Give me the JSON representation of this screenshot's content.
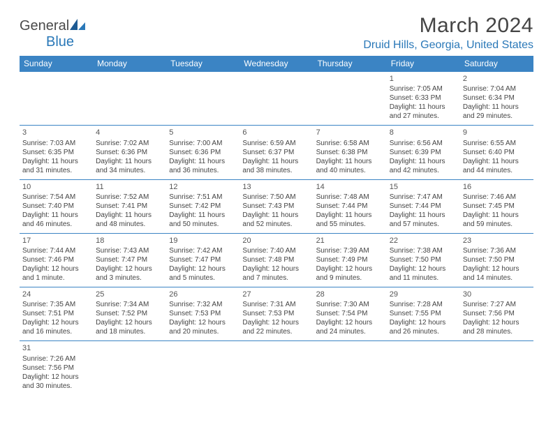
{
  "logo": {
    "text1": "General",
    "text2": "Blue"
  },
  "title": "March 2024",
  "location": "Druid Hills, Georgia, United States",
  "colors": {
    "header_bg": "#3b84c4",
    "header_text": "#ffffff",
    "border": "#3b84c4",
    "location_color": "#2a78b8",
    "body_text": "#444444"
  },
  "weekdays": [
    "Sunday",
    "Monday",
    "Tuesday",
    "Wednesday",
    "Thursday",
    "Friday",
    "Saturday"
  ],
  "weeks": [
    [
      null,
      null,
      null,
      null,
      null,
      {
        "n": "1",
        "sunrise": "7:05 AM",
        "sunset": "6:33 PM",
        "daylight": "11 hours and 27 minutes."
      },
      {
        "n": "2",
        "sunrise": "7:04 AM",
        "sunset": "6:34 PM",
        "daylight": "11 hours and 29 minutes."
      }
    ],
    [
      {
        "n": "3",
        "sunrise": "7:03 AM",
        "sunset": "6:35 PM",
        "daylight": "11 hours and 31 minutes."
      },
      {
        "n": "4",
        "sunrise": "7:02 AM",
        "sunset": "6:36 PM",
        "daylight": "11 hours and 34 minutes."
      },
      {
        "n": "5",
        "sunrise": "7:00 AM",
        "sunset": "6:36 PM",
        "daylight": "11 hours and 36 minutes."
      },
      {
        "n": "6",
        "sunrise": "6:59 AM",
        "sunset": "6:37 PM",
        "daylight": "11 hours and 38 minutes."
      },
      {
        "n": "7",
        "sunrise": "6:58 AM",
        "sunset": "6:38 PM",
        "daylight": "11 hours and 40 minutes."
      },
      {
        "n": "8",
        "sunrise": "6:56 AM",
        "sunset": "6:39 PM",
        "daylight": "11 hours and 42 minutes."
      },
      {
        "n": "9",
        "sunrise": "6:55 AM",
        "sunset": "6:40 PM",
        "daylight": "11 hours and 44 minutes."
      }
    ],
    [
      {
        "n": "10",
        "sunrise": "7:54 AM",
        "sunset": "7:40 PM",
        "daylight": "11 hours and 46 minutes."
      },
      {
        "n": "11",
        "sunrise": "7:52 AM",
        "sunset": "7:41 PM",
        "daylight": "11 hours and 48 minutes."
      },
      {
        "n": "12",
        "sunrise": "7:51 AM",
        "sunset": "7:42 PM",
        "daylight": "11 hours and 50 minutes."
      },
      {
        "n": "13",
        "sunrise": "7:50 AM",
        "sunset": "7:43 PM",
        "daylight": "11 hours and 52 minutes."
      },
      {
        "n": "14",
        "sunrise": "7:48 AM",
        "sunset": "7:44 PM",
        "daylight": "11 hours and 55 minutes."
      },
      {
        "n": "15",
        "sunrise": "7:47 AM",
        "sunset": "7:44 PM",
        "daylight": "11 hours and 57 minutes."
      },
      {
        "n": "16",
        "sunrise": "7:46 AM",
        "sunset": "7:45 PM",
        "daylight": "11 hours and 59 minutes."
      }
    ],
    [
      {
        "n": "17",
        "sunrise": "7:44 AM",
        "sunset": "7:46 PM",
        "daylight": "12 hours and 1 minute."
      },
      {
        "n": "18",
        "sunrise": "7:43 AM",
        "sunset": "7:47 PM",
        "daylight": "12 hours and 3 minutes."
      },
      {
        "n": "19",
        "sunrise": "7:42 AM",
        "sunset": "7:47 PM",
        "daylight": "12 hours and 5 minutes."
      },
      {
        "n": "20",
        "sunrise": "7:40 AM",
        "sunset": "7:48 PM",
        "daylight": "12 hours and 7 minutes."
      },
      {
        "n": "21",
        "sunrise": "7:39 AM",
        "sunset": "7:49 PM",
        "daylight": "12 hours and 9 minutes."
      },
      {
        "n": "22",
        "sunrise": "7:38 AM",
        "sunset": "7:50 PM",
        "daylight": "12 hours and 11 minutes."
      },
      {
        "n": "23",
        "sunrise": "7:36 AM",
        "sunset": "7:50 PM",
        "daylight": "12 hours and 14 minutes."
      }
    ],
    [
      {
        "n": "24",
        "sunrise": "7:35 AM",
        "sunset": "7:51 PM",
        "daylight": "12 hours and 16 minutes."
      },
      {
        "n": "25",
        "sunrise": "7:34 AM",
        "sunset": "7:52 PM",
        "daylight": "12 hours and 18 minutes."
      },
      {
        "n": "26",
        "sunrise": "7:32 AM",
        "sunset": "7:53 PM",
        "daylight": "12 hours and 20 minutes."
      },
      {
        "n": "27",
        "sunrise": "7:31 AM",
        "sunset": "7:53 PM",
        "daylight": "12 hours and 22 minutes."
      },
      {
        "n": "28",
        "sunrise": "7:30 AM",
        "sunset": "7:54 PM",
        "daylight": "12 hours and 24 minutes."
      },
      {
        "n": "29",
        "sunrise": "7:28 AM",
        "sunset": "7:55 PM",
        "daylight": "12 hours and 26 minutes."
      },
      {
        "n": "30",
        "sunrise": "7:27 AM",
        "sunset": "7:56 PM",
        "daylight": "12 hours and 28 minutes."
      }
    ],
    [
      {
        "n": "31",
        "sunrise": "7:26 AM",
        "sunset": "7:56 PM",
        "daylight": "12 hours and 30 minutes."
      },
      null,
      null,
      null,
      null,
      null,
      null
    ]
  ],
  "labels": {
    "sunrise_prefix": "Sunrise: ",
    "sunset_prefix": "Sunset: ",
    "daylight_prefix": "Daylight: "
  }
}
